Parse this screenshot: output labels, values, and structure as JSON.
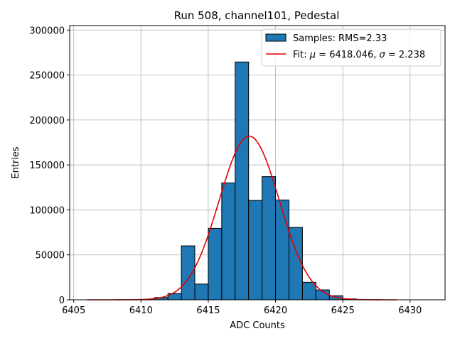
{
  "chart_data": {
    "type": "bar",
    "title": "Run 508, channel101, Pedestal",
    "xlabel": "ADC Counts",
    "ylabel": "Entries",
    "xlim": [
      6404.7,
      6432.6
    ],
    "ylim": [
      0,
      305000
    ],
    "xticks": [
      6405,
      6410,
      6415,
      6420,
      6425,
      6430
    ],
    "yticks": [
      0,
      50000,
      100000,
      150000,
      200000,
      250000,
      300000
    ],
    "grid": true,
    "legend_position": "top-right",
    "bin_width": 1,
    "histogram": {
      "name": "Samples: RMS=2.33",
      "color": "#1f77b4",
      "bins": [
        {
          "left": 6410,
          "value": 300
        },
        {
          "left": 6411,
          "value": 2500
        },
        {
          "left": 6412,
          "value": 7000
        },
        {
          "left": 6413,
          "value": 60000
        },
        {
          "left": 6414,
          "value": 17500
        },
        {
          "left": 6415,
          "value": 79500
        },
        {
          "left": 6416,
          "value": 130000
        },
        {
          "left": 6417,
          "value": 264500
        },
        {
          "left": 6418,
          "value": 110500
        },
        {
          "left": 6419,
          "value": 137000
        },
        {
          "left": 6420,
          "value": 111000
        },
        {
          "left": 6421,
          "value": 80500
        },
        {
          "left": 6422,
          "value": 19500
        },
        {
          "left": 6423,
          "value": 11000
        },
        {
          "left": 6424,
          "value": 4500
        },
        {
          "left": 6425,
          "value": 1000
        }
      ]
    },
    "fit": {
      "label_prefix": "Fit: ",
      "label_mu": "μ",
      "label_mu_value": " = 6418.046, ",
      "label_sigma": "σ",
      "label_sigma_value": " = 2.238",
      "color": "#e00000",
      "mu": 6418.046,
      "sigma": 2.238,
      "amplitude": 182000,
      "x_range": [
        6406,
        6429
      ]
    }
  }
}
